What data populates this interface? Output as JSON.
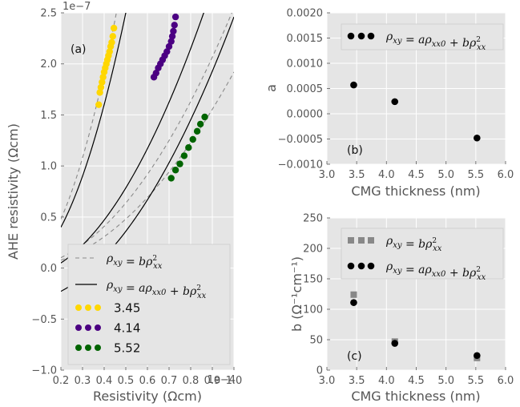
{
  "chart_data": [
    {
      "type": "scatter",
      "panel_label": "(a)",
      "xlabel": "Resistivity (Ωcm)",
      "ylabel": "AHE resistivity (Ωcm)",
      "x_offset": "1e−4",
      "y_offset": "1e−7",
      "xlim": [
        0.2,
        1.0
      ],
      "ylim": [
        -1.0,
        2.5
      ],
      "xticks": [
        0.2,
        0.3,
        0.4,
        0.5,
        0.6,
        0.7,
        0.8,
        0.9,
        1.0
      ],
      "yticks": [
        -1.0,
        -0.5,
        0.0,
        0.5,
        1.0,
        1.5,
        2.0,
        2.5
      ],
      "xtick_labels": [
        "0.2",
        "0.3",
        "0.4",
        "0.5",
        "0.6",
        "0.7",
        "0.8",
        "0.9",
        "1.0"
      ],
      "ytick_labels": [
        "−1.0",
        "−0.5",
        "0.0",
        "0.5",
        "1.0",
        "1.5",
        "2.0",
        "2.5"
      ],
      "legend_position": "bottom",
      "series": [
        {
          "name": "3.45",
          "color": "#FFD700",
          "x": [
            0.375,
            0.38,
            0.385,
            0.39,
            0.395,
            0.4,
            0.405,
            0.41,
            0.415,
            0.42,
            0.425,
            0.43,
            0.435,
            0.44,
            0.445
          ],
          "y": [
            1.6,
            1.72,
            1.77,
            1.82,
            1.87,
            1.92,
            1.96,
            2.0,
            2.04,
            2.08,
            2.12,
            2.17,
            2.21,
            2.27,
            2.35
          ]
        },
        {
          "name": "4.14",
          "color": "#4B0082",
          "x": [
            0.63,
            0.64,
            0.65,
            0.66,
            0.67,
            0.68,
            0.69,
            0.7,
            0.71,
            0.715,
            0.72,
            0.725,
            0.73
          ],
          "y": [
            1.87,
            1.91,
            1.96,
            2.0,
            2.04,
            2.08,
            2.12,
            2.17,
            2.22,
            2.27,
            2.32,
            2.38,
            2.46
          ]
        },
        {
          "name": "5.52",
          "color": "#006400",
          "x": [
            0.71,
            0.73,
            0.75,
            0.77,
            0.79,
            0.81,
            0.83,
            0.845,
            0.865
          ],
          "y": [
            0.88,
            0.96,
            1.02,
            1.1,
            1.18,
            1.26,
            1.34,
            1.41,
            1.48
          ]
        }
      ],
      "fits": {
        "dashed_label": "bρ²xx",
        "solid_label": "aρxx0 + bρ²xx",
        "solid_curves": [
          {
            "a": 0.0,
            "b": 10.0,
            "c": 0.0,
            "x0": 0.2
          },
          {
            "a": 0.0,
            "b": 3.5,
            "c": -0.09,
            "x0": 0.2
          },
          {
            "a": 0.0,
            "b": 2.8,
            "c": -0.34,
            "x0": 0.2
          }
        ],
        "dashed_curves": [
          {
            "b": 12.0,
            "c": 0.0
          },
          {
            "b": 2.55,
            "c": 0.0
          },
          {
            "b": 1.92,
            "c": 0.0
          }
        ]
      }
    },
    {
      "type": "scatter",
      "panel_label": "(b)",
      "xlabel": "CMG thickness (nm)",
      "ylabel": "a",
      "xlim": [
        3.0,
        6.0
      ],
      "ylim": [
        -0.001,
        0.002
      ],
      "xticks": [
        3.0,
        3.5,
        4.0,
        4.5,
        5.0,
        5.5,
        6.0
      ],
      "yticks": [
        -0.001,
        -0.0005,
        0.0,
        0.0005,
        0.001,
        0.0015,
        0.002
      ],
      "xtick_labels": [
        "3.0",
        "3.5",
        "4.0",
        "4.5",
        "5.0",
        "5.5",
        "6.0"
      ],
      "ytick_labels": [
        "−0.0010",
        "−0.0005",
        "0.0000",
        "0.0005",
        "0.0010",
        "0.0015",
        "0.0020"
      ],
      "legend_position": "top-right",
      "series": [
        {
          "name": "ρxy = aρxx0 + bρ²xx",
          "color": "#000000",
          "x": [
            3.45,
            4.14,
            5.52
          ],
          "y": [
            0.00057,
            0.00024,
            -0.00048
          ]
        }
      ]
    },
    {
      "type": "scatter",
      "panel_label": "(c)",
      "xlabel": "CMG thickness (nm)",
      "ylabel": "b (Ω⁻¹cm⁻¹)",
      "xlim": [
        3.0,
        6.0
      ],
      "ylim": [
        0,
        250
      ],
      "xticks": [
        3.0,
        3.5,
        4.0,
        4.5,
        5.0,
        5.5,
        6.0
      ],
      "yticks": [
        0,
        50,
        100,
        150,
        200,
        250
      ],
      "xtick_labels": [
        "3.0",
        "3.5",
        "4.0",
        "4.5",
        "5.0",
        "5.5",
        "6.0"
      ],
      "ytick_labels": [
        "0",
        "50",
        "100",
        "150",
        "200",
        "250"
      ],
      "legend_position": "top-right",
      "series": [
        {
          "name": "ρxy = bρ²xx",
          "color": "#888888",
          "marker": "square",
          "x": [
            3.45,
            4.14,
            5.52
          ],
          "y": [
            124,
            47,
            20
          ]
        },
        {
          "name": "ρxy = aρxx0 + bρ²xx",
          "color": "#000000",
          "marker": "circle",
          "x": [
            3.45,
            4.14,
            5.52
          ],
          "y": [
            111,
            44,
            24
          ]
        }
      ]
    }
  ]
}
